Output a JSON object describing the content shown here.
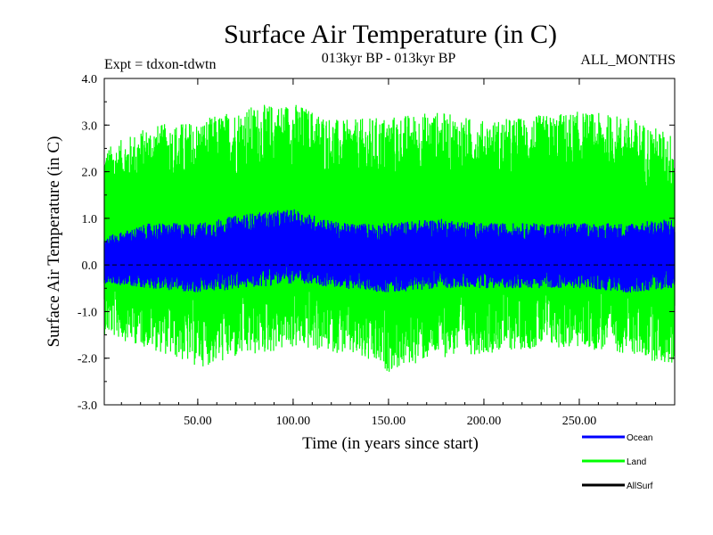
{
  "chart_data": {
    "type": "line",
    "title": "Surface Air Temperature (in C)",
    "subtitle_left": "Expt = tdxon-tdwtn",
    "subtitle_center": "013kyr BP - 013kyr BP",
    "subtitle_right": "ALL_MONTHS",
    "xlabel": "Time (in years since start)",
    "ylabel": "Surface Air Temperature (in C)",
    "xlim": [
      1,
      300
    ],
    "ylim": [
      -3.0,
      4.0
    ],
    "x_ticks": [
      {
        "value": 50,
        "label": "50.00"
      },
      {
        "value": 100,
        "label": "100.00"
      },
      {
        "value": 150,
        "label": "150.00"
      },
      {
        "value": 200,
        "label": "200.00"
      },
      {
        "value": 250,
        "label": "250.00"
      }
    ],
    "y_ticks": [
      {
        "value": -3.0,
        "label": "-3.0"
      },
      {
        "value": -2.0,
        "label": "-2.0"
      },
      {
        "value": -1.0,
        "label": "-1.0"
      },
      {
        "value": 0.0,
        "label": "0.0"
      },
      {
        "value": 1.0,
        "label": "1.0"
      },
      {
        "value": 2.0,
        "label": "2.0"
      },
      {
        "value": 3.0,
        "label": "3.0"
      },
      {
        "value": 4.0,
        "label": "4.0"
      }
    ],
    "zero_line": true,
    "legend_position": "bottom-right",
    "series": [
      {
        "name": "Land",
        "color": "#00ff00",
        "envelope_x": [
          1,
          25,
          50,
          75,
          100,
          125,
          150,
          175,
          200,
          225,
          250,
          275,
          300
        ],
        "upper": [
          2.5,
          3.0,
          3.1,
          3.4,
          3.5,
          3.1,
          3.2,
          3.3,
          3.1,
          3.2,
          3.3,
          3.2,
          2.8
        ],
        "lower": [
          -1.5,
          -1.8,
          -2.2,
          -2.0,
          -1.8,
          -1.9,
          -2.3,
          -2.0,
          -1.9,
          -1.8,
          -1.8,
          -1.9,
          -2.2
        ]
      },
      {
        "name": "Ocean",
        "color": "#0000ff",
        "envelope_x": [
          1,
          25,
          50,
          75,
          100,
          125,
          150,
          175,
          200,
          225,
          250,
          275,
          300
        ],
        "upper": [
          0.6,
          0.9,
          0.9,
          1.1,
          1.2,
          0.9,
          0.9,
          1.0,
          0.9,
          0.9,
          0.9,
          0.9,
          1.0
        ],
        "lower": [
          -0.4,
          -0.5,
          -0.6,
          -0.5,
          -0.4,
          -0.5,
          -0.6,
          -0.5,
          -0.5,
          -0.5,
          -0.5,
          -0.6,
          -0.5
        ]
      },
      {
        "name": "AllSurf",
        "color": "#000000",
        "envelope_x": [],
        "upper": [],
        "lower": []
      }
    ],
    "legend": [
      {
        "label": "Ocean",
        "color": "#0000ff"
      },
      {
        "label": "Land",
        "color": "#00ff00"
      },
      {
        "label": "AllSurf",
        "color": "#000000"
      }
    ]
  }
}
